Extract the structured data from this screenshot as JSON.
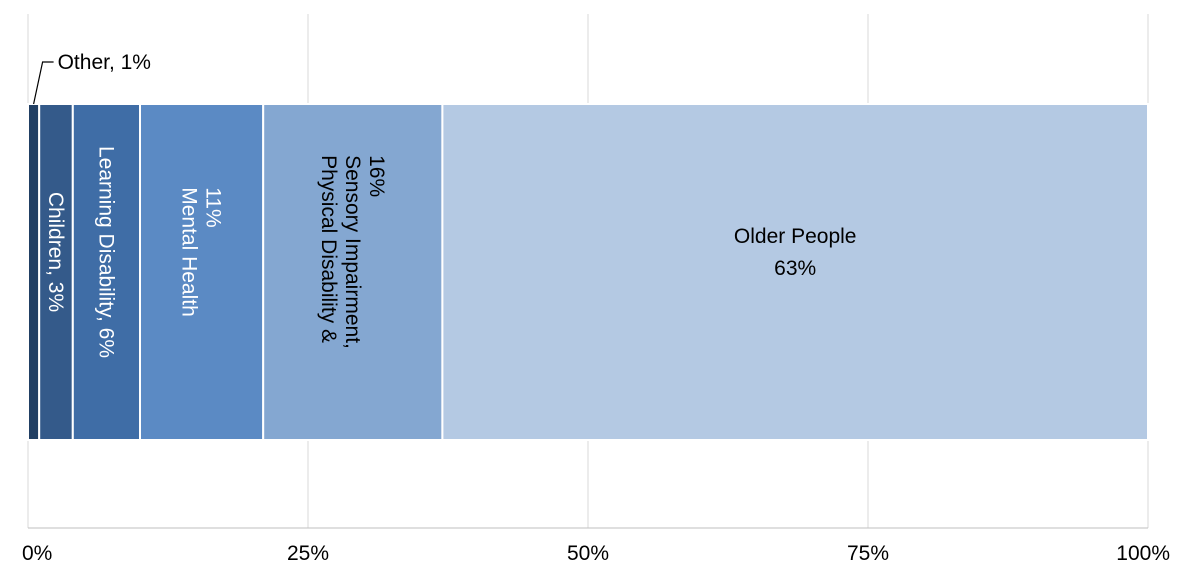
{
  "chart_data": {
    "type": "bar",
    "orientation": "horizontal",
    "stacked": true,
    "title": "",
    "xlabel": "",
    "ylabel": "",
    "xlim": [
      0,
      100
    ],
    "xticks": [
      "0%",
      "25%",
      "50%",
      "75%",
      "100%"
    ],
    "grid": true,
    "legend": "none",
    "segments": [
      {
        "name": "Other",
        "value": 1,
        "color": "#213f63",
        "label_lines": [
          "Other, 1%"
        ],
        "label_color": "#000000",
        "label_position": "outside"
      },
      {
        "name": "Children",
        "value": 3,
        "color": "#345a8a",
        "label_lines": [
          "Children, 3%"
        ],
        "label_color": "#ffffff",
        "label_position": "inside-vertical"
      },
      {
        "name": "Learning Disability",
        "value": 6,
        "color": "#3f6da6",
        "label_lines": [
          "Learning Disability, 6%"
        ],
        "label_color": "#ffffff",
        "label_position": "inside-vertical"
      },
      {
        "name": "Mental Health",
        "value": 11,
        "color": "#5b8ac4",
        "label_lines": [
          "Mental Health",
          "11%"
        ],
        "label_color": "#ffffff",
        "label_position": "inside-vertical"
      },
      {
        "name": "Physical Disability & Sensory Impairment",
        "value": 16,
        "color": "#84a7d1",
        "label_lines": [
          "Physical Disability &",
          "Sensory Impairment,",
          "16%"
        ],
        "label_color": "#000000",
        "label_position": "inside-vertical"
      },
      {
        "name": "Older People",
        "value": 63,
        "color": "#b4c9e3",
        "label_lines": [
          "Older People",
          "63%"
        ],
        "label_color": "#000000",
        "label_position": "inside-horizontal"
      }
    ]
  }
}
